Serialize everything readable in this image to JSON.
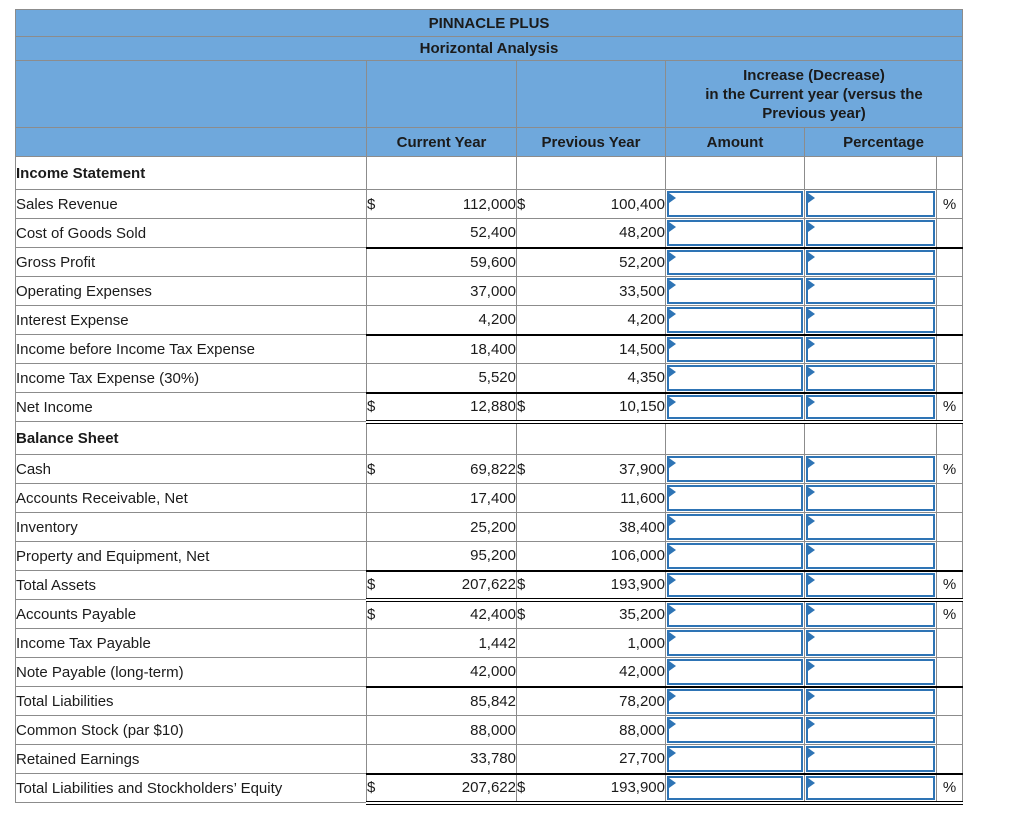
{
  "title": "PINNACLE PLUS",
  "subtitle": "Horizontal Analysis",
  "columns": {
    "increase_lines": [
      "Increase (Decrease)",
      "in the Current year (versus the",
      "Previous year)"
    ],
    "current": "Current Year",
    "previous": "Previous Year",
    "amount": "Amount",
    "percentage": "Percentage"
  },
  "symbols": {
    "dollar": "$",
    "percent": "%"
  },
  "colors": {
    "header_blue": "#6fa8dc",
    "grid_gray": "#8c8c8c",
    "input_border_blue": "#2e74b5",
    "rule_black": "#000000"
  },
  "rows": [
    {
      "type": "section",
      "label": "Income Statement"
    },
    {
      "type": "data",
      "label": "Sales Revenue",
      "current": "112,000",
      "previous": "100,400",
      "dollar_sign": true,
      "percent_sign": true,
      "underline": "none"
    },
    {
      "type": "data",
      "label": "Cost of Goods Sold",
      "current": "52,400",
      "previous": "48,200",
      "dollar_sign": false,
      "percent_sign": false,
      "underline": "single"
    },
    {
      "type": "data",
      "label": "Gross Profit",
      "current": "59,600",
      "previous": "52,200",
      "dollar_sign": false,
      "percent_sign": false,
      "underline": "none"
    },
    {
      "type": "data",
      "label": "Operating Expenses",
      "current": "37,000",
      "previous": "33,500",
      "dollar_sign": false,
      "percent_sign": false,
      "underline": "none"
    },
    {
      "type": "data",
      "label": "Interest Expense",
      "current": "4,200",
      "previous": "4,200",
      "dollar_sign": false,
      "percent_sign": false,
      "underline": "single"
    },
    {
      "type": "data",
      "label": "Income before Income Tax Expense",
      "current": "18,400",
      "previous": "14,500",
      "dollar_sign": false,
      "percent_sign": false,
      "underline": "none"
    },
    {
      "type": "data",
      "label": "Income Tax Expense (30%)",
      "current": "5,520",
      "previous": "4,350",
      "dollar_sign": false,
      "percent_sign": false,
      "underline": "single"
    },
    {
      "type": "data",
      "label": "Net Income",
      "current": "12,880",
      "previous": "10,150",
      "dollar_sign": true,
      "percent_sign": true,
      "underline": "double"
    },
    {
      "type": "section",
      "label": "Balance Sheet"
    },
    {
      "type": "data",
      "label": "Cash",
      "current": "69,822",
      "previous": "37,900",
      "dollar_sign": true,
      "percent_sign": true,
      "underline": "none"
    },
    {
      "type": "data",
      "label": "Accounts Receivable, Net",
      "current": "17,400",
      "previous": "11,600",
      "dollar_sign": false,
      "percent_sign": false,
      "underline": "none"
    },
    {
      "type": "data",
      "label": "Inventory",
      "current": "25,200",
      "previous": "38,400",
      "dollar_sign": false,
      "percent_sign": false,
      "underline": "none"
    },
    {
      "type": "data",
      "label": "Property and Equipment, Net",
      "current": "95,200",
      "previous": "106,000",
      "dollar_sign": false,
      "percent_sign": false,
      "underline": "single"
    },
    {
      "type": "data",
      "label": "Total Assets",
      "current": "207,622",
      "previous": "193,900",
      "dollar_sign": true,
      "percent_sign": true,
      "underline": "double"
    },
    {
      "type": "data",
      "label": "Accounts Payable",
      "current": "42,400",
      "previous": "35,200",
      "dollar_sign": true,
      "percent_sign": true,
      "underline": "none"
    },
    {
      "type": "data",
      "label": "Income Tax Payable",
      "current": "1,442",
      "previous": "1,000",
      "dollar_sign": false,
      "percent_sign": false,
      "underline": "none"
    },
    {
      "type": "data",
      "label": "Note Payable (long-term)",
      "current": "42,000",
      "previous": "42,000",
      "dollar_sign": false,
      "percent_sign": false,
      "underline": "single"
    },
    {
      "type": "data",
      "label": "Total Liabilities",
      "current": "85,842",
      "previous": "78,200",
      "dollar_sign": false,
      "percent_sign": false,
      "underline": "none"
    },
    {
      "type": "data",
      "label": "Common Stock (par $10)",
      "current": "88,000",
      "previous": "88,000",
      "dollar_sign": false,
      "percent_sign": false,
      "underline": "none"
    },
    {
      "type": "data",
      "label": "Retained Earnings",
      "current": "33,780",
      "previous": "27,700",
      "dollar_sign": false,
      "percent_sign": false,
      "underline": "single"
    },
    {
      "type": "data",
      "label": "Total Liabilities and Stockholders’ Equity",
      "current": "207,622",
      "previous": "193,900",
      "dollar_sign": true,
      "percent_sign": true,
      "underline": "double"
    }
  ]
}
